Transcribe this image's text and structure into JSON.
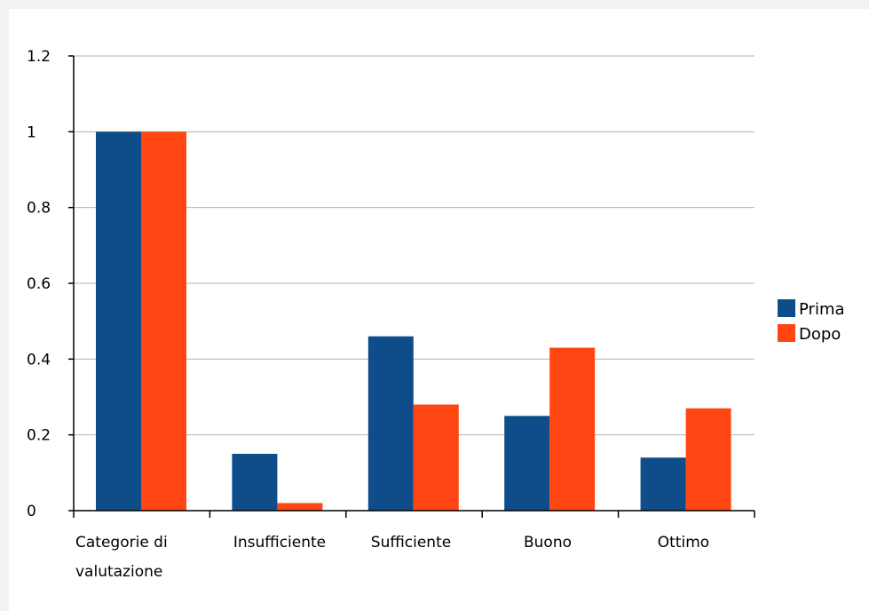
{
  "chart_data": {
    "type": "bar",
    "categories": [
      "Categorie di valutazione",
      "Insufficiente",
      "Sufficiente",
      "Buono",
      "Ottimo"
    ],
    "category_lines": [
      [
        "Categorie di",
        "valutazione"
      ],
      [
        "Insufficiente"
      ],
      [
        "Sufficiente"
      ],
      [
        "Buono"
      ],
      [
        "Ottimo"
      ]
    ],
    "series": [
      {
        "name": "Prima",
        "color": "#0e4c8a",
        "values": [
          1.0,
          0.15,
          0.46,
          0.25,
          0.14
        ]
      },
      {
        "name": "Dopo",
        "color": "#ff4512",
        "values": [
          1.0,
          0.02,
          0.28,
          0.43,
          0.27
        ]
      }
    ],
    "yticks": [
      {
        "value": 0,
        "label": "0"
      },
      {
        "value": 0.2,
        "label": "0.2"
      },
      {
        "value": 0.4,
        "label": "0.4"
      },
      {
        "value": 0.6,
        "label": "0.6"
      },
      {
        "value": 0.8,
        "label": "0.8"
      },
      {
        "value": 1.0,
        "label": "1"
      },
      {
        "value": 1.2,
        "label": "1.2"
      }
    ],
    "ylim": [
      0,
      1.2
    ],
    "grid": true,
    "legend_position": "right",
    "title": "",
    "xlabel": "",
    "ylabel": ""
  }
}
